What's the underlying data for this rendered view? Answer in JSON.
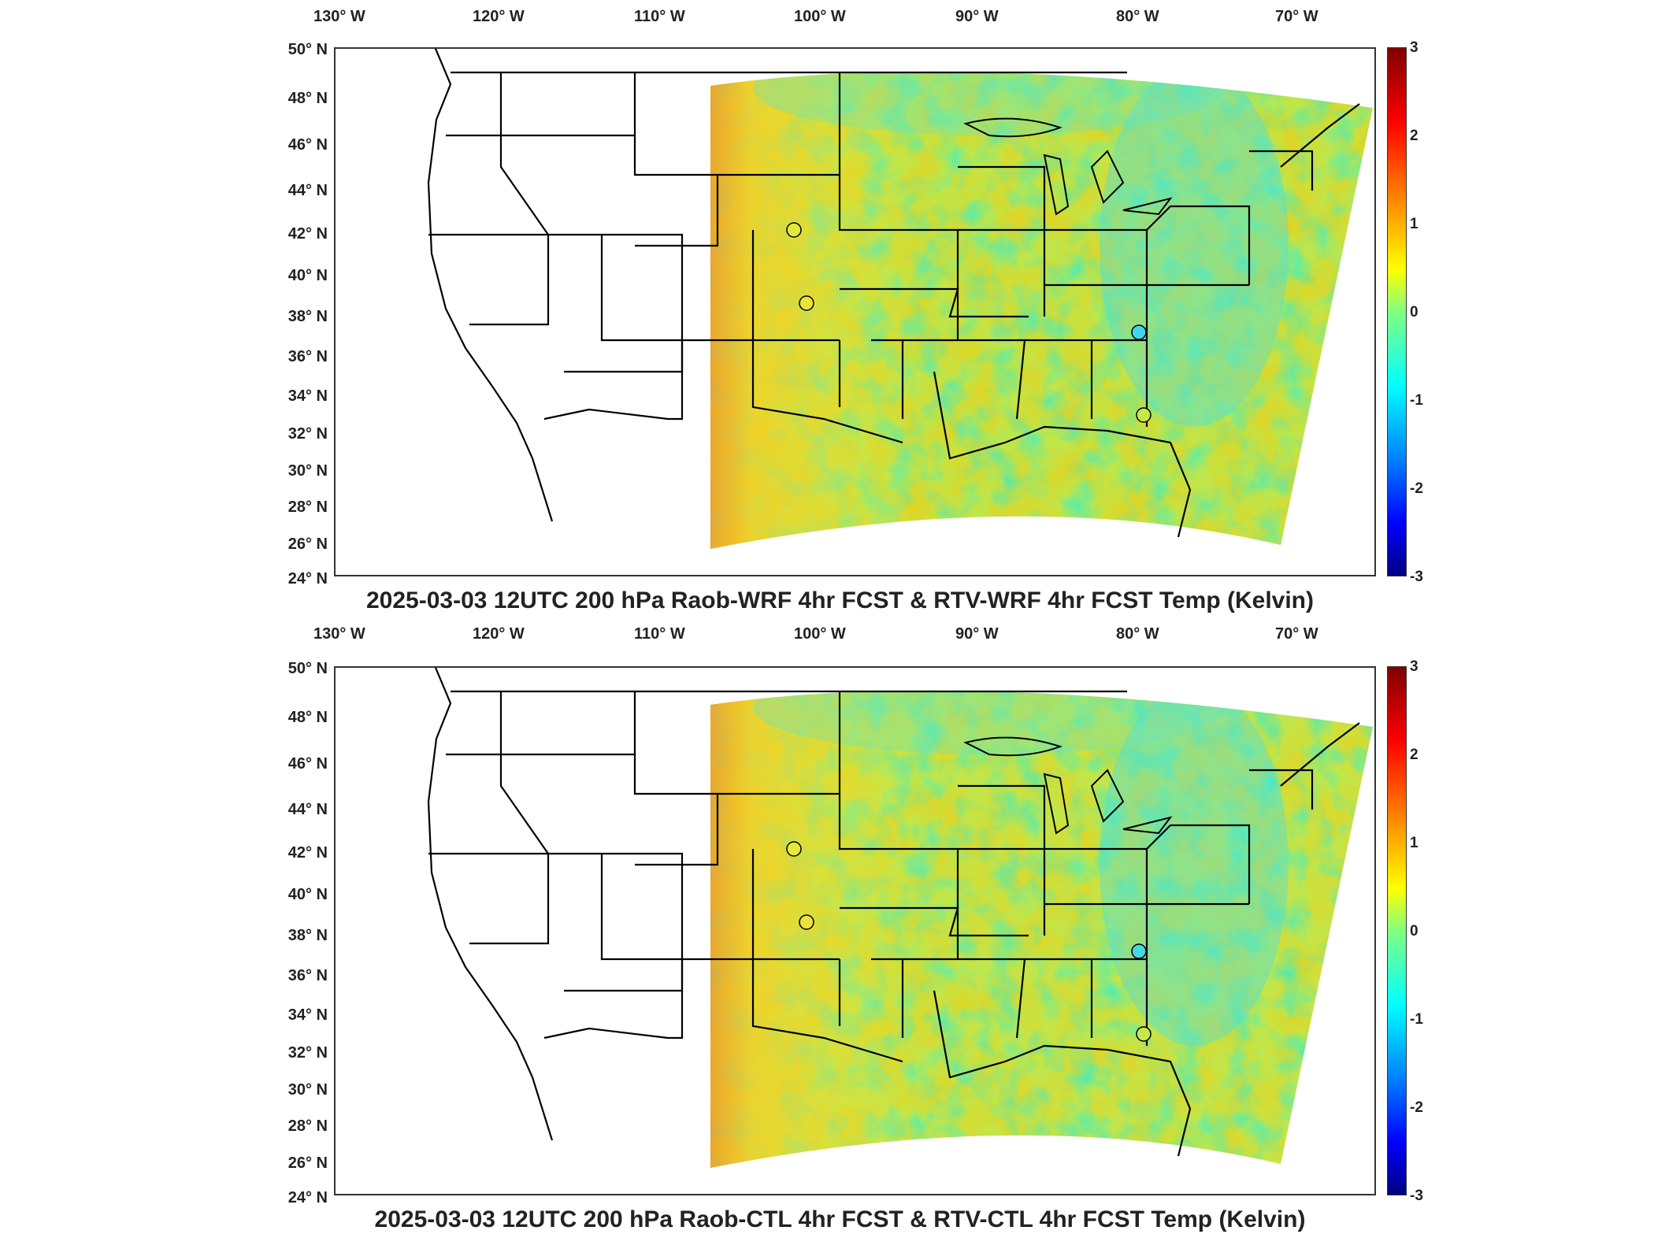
{
  "panels": [
    {
      "title": "2025-03-03 12UTC 200 hPa Raob-WRF 4hr FCST & RTV-WRF 4hr FCST Temp (Kelvin)"
    },
    {
      "title": "2025-03-03 12UTC 200 hPa Raob-CTL 4hr FCST & RTV-CTL 4hr FCST Temp (Kelvin)"
    }
  ],
  "lon_labels": [
    "130° W",
    "120° W",
    "110° W",
    "100° W",
    "90° W",
    "80° W",
    "70° W"
  ],
  "lat_labels": [
    "50° N",
    "48° N",
    "46° N",
    "44° N",
    "42° N",
    "40° N",
    "38° N",
    "36° N",
    "34° N",
    "32° N",
    "30° N",
    "28° N",
    "26° N",
    "24° N"
  ],
  "colorbar": {
    "ticks": [
      "3",
      "2",
      "1",
      "0",
      "-1",
      "-2",
      "-3"
    ],
    "range": [
      -3,
      3
    ],
    "colormap": [
      "#800000",
      "#ff0000",
      "#ff8000",
      "#ffff00",
      "#80ff80",
      "#00ffff",
      "#0080ff",
      "#0000ff",
      "#000080"
    ]
  },
  "raob_stations": [
    {
      "lon": -101.7,
      "lat": 41.1,
      "value_panel1": 0.4,
      "value_panel2": 0.5
    },
    {
      "lon": -101.0,
      "lat": 37.7,
      "value_panel1": 0.5,
      "value_panel2": 0.6
    },
    {
      "lon": -80.4,
      "lat": 37.2,
      "value_panel1": -0.6,
      "value_panel2": -0.5
    },
    {
      "lon": -80.0,
      "lat": 32.9,
      "value_panel1": 0.3,
      "value_panel2": 0.3
    }
  ]
}
